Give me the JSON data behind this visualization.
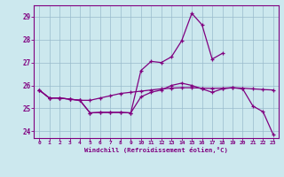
{
  "xlabel": "Windchill (Refroidissement éolien,°C)",
  "x": [
    0,
    1,
    2,
    3,
    4,
    5,
    6,
    7,
    8,
    9,
    10,
    11,
    12,
    13,
    14,
    15,
    16,
    17,
    18,
    19,
    20,
    21,
    22,
    23
  ],
  "line1": [
    25.8,
    25.45,
    25.45,
    25.4,
    25.35,
    25.35,
    25.45,
    25.55,
    25.65,
    25.7,
    25.75,
    25.8,
    25.85,
    25.88,
    25.9,
    25.9,
    25.88,
    25.87,
    25.88,
    25.9,
    25.88,
    25.85,
    25.82,
    25.8
  ],
  "line2": [
    25.8,
    25.45,
    25.45,
    25.4,
    25.35,
    24.8,
    24.82,
    24.82,
    24.82,
    24.8,
    25.5,
    25.7,
    25.8,
    26.0,
    26.1,
    26.0,
    25.85,
    25.7,
    25.85,
    25.9,
    25.85,
    25.1,
    24.85,
    23.85
  ],
  "line3_x": [
    0,
    1,
    2,
    3,
    4,
    5,
    6,
    7,
    8,
    9,
    10,
    11,
    12,
    13,
    14,
    15,
    16,
    17,
    18
  ],
  "line3_y": [
    25.8,
    25.45,
    25.45,
    25.4,
    25.35,
    24.8,
    24.82,
    24.82,
    24.82,
    24.8,
    26.65,
    27.05,
    27.0,
    27.25,
    27.95,
    29.15,
    28.65,
    27.15,
    27.4
  ],
  "color": "#800080",
  "bg_color": "#cce8ee",
  "grid_color": "#99bbcc",
  "ylim": [
    23.7,
    29.5
  ],
  "xlim": [
    -0.5,
    23.5
  ],
  "yticks": [
    24,
    25,
    26,
    27,
    28,
    29
  ],
  "xticks": [
    0,
    1,
    2,
    3,
    4,
    5,
    6,
    7,
    8,
    9,
    10,
    11,
    12,
    13,
    14,
    15,
    16,
    17,
    18,
    19,
    20,
    21,
    22,
    23
  ]
}
